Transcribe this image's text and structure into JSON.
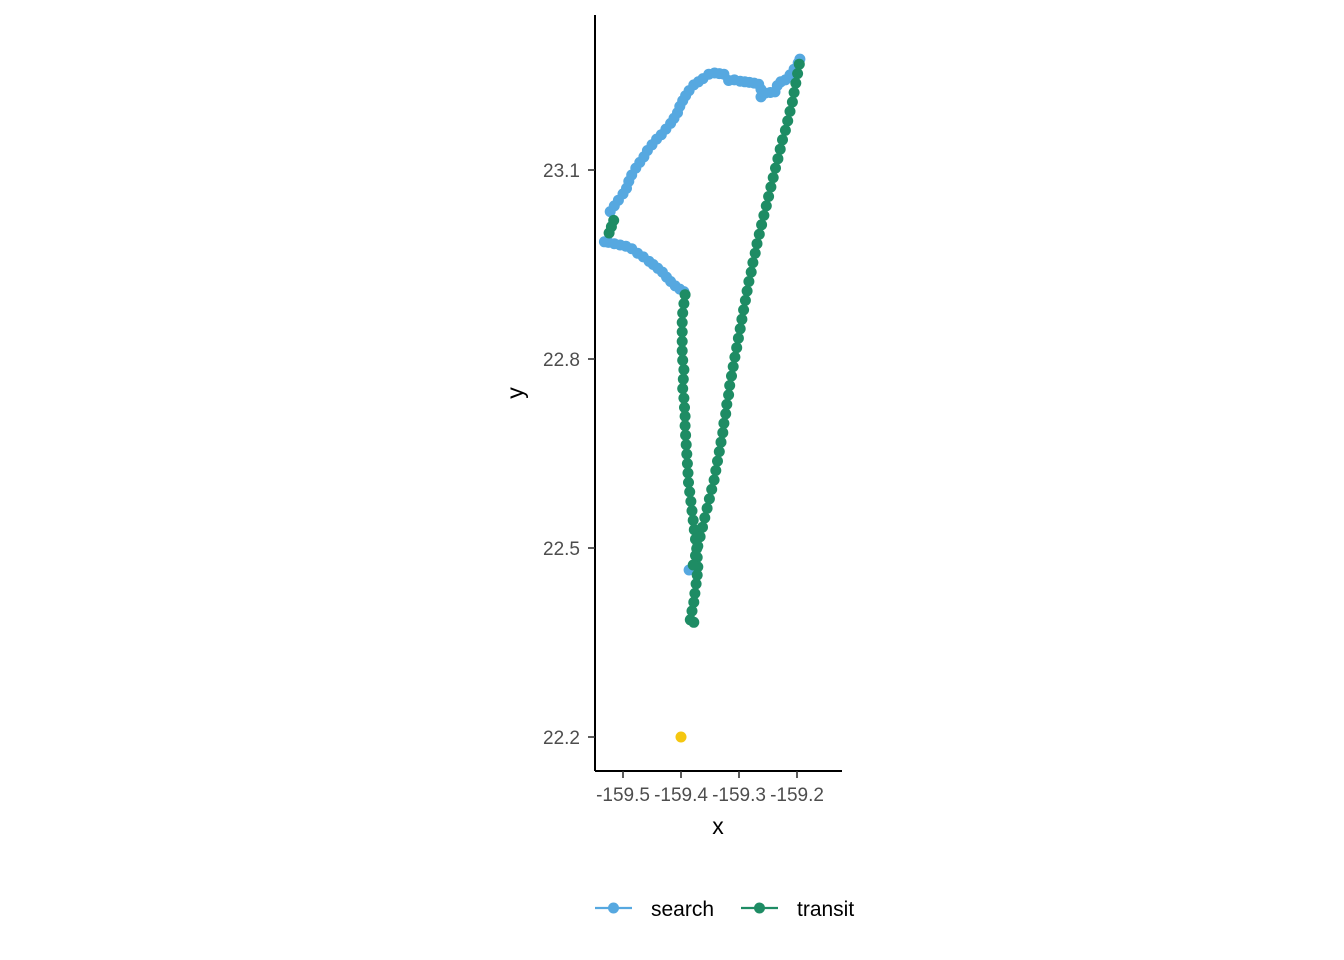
{
  "chart_data": {
    "type": "scatter",
    "title": "",
    "xlabel": "x",
    "ylabel": "y",
    "x_ticks": [
      {
        "value": -159.5,
        "label": "-159.5"
      },
      {
        "value": -159.4,
        "label": "-159.4"
      },
      {
        "value": -159.3,
        "label": "-159.3"
      },
      {
        "value": -159.2,
        "label": "-159.2"
      }
    ],
    "y_ticks": [
      {
        "value": 22.2,
        "label": "22.2"
      },
      {
        "value": 22.5,
        "label": "22.5"
      },
      {
        "value": 22.8,
        "label": "22.8"
      },
      {
        "value": 23.1,
        "label": "23.1"
      }
    ],
    "xlim": [
      -159.55,
      -159.125
    ],
    "ylim": [
      22.145,
      23.345
    ],
    "grid": false,
    "legend_position": "bottom",
    "legend": [
      {
        "name": "search",
        "color": "#56A8E0"
      },
      {
        "name": "transit",
        "color": "#1E8C64"
      }
    ],
    "series": [
      {
        "name": "search",
        "color": "#56A8E0",
        "points": [
          [
            -159.532,
            22.986
          ],
          [
            -159.525,
            22.985
          ],
          [
            -159.515,
            22.983
          ],
          [
            -159.505,
            22.981
          ],
          [
            -159.495,
            22.979
          ],
          [
            -159.485,
            22.975
          ],
          [
            -159.475,
            22.968
          ],
          [
            -159.465,
            22.962
          ],
          [
            -159.455,
            22.955
          ],
          [
            -159.448,
            22.95
          ],
          [
            -159.44,
            22.944
          ],
          [
            -159.432,
            22.938
          ],
          [
            -159.425,
            22.93
          ],
          [
            -159.418,
            22.923
          ],
          [
            -159.41,
            22.916
          ],
          [
            -159.402,
            22.911
          ],
          [
            -159.395,
            22.907
          ],
          [
            -159.522,
            23.034
          ],
          [
            -159.515,
            23.043
          ],
          [
            -159.508,
            23.052
          ],
          [
            -159.5,
            23.062
          ],
          [
            -159.494,
            23.071
          ],
          [
            -159.49,
            23.082
          ],
          [
            -159.485,
            23.092
          ],
          [
            -159.478,
            23.103
          ],
          [
            -159.471,
            23.112
          ],
          [
            -159.464,
            23.121
          ],
          [
            -159.458,
            23.131
          ],
          [
            -159.45,
            23.14
          ],
          [
            -159.442,
            23.149
          ],
          [
            -159.434,
            23.156
          ],
          [
            -159.426,
            23.165
          ],
          [
            -159.418,
            23.174
          ],
          [
            -159.412,
            23.182
          ],
          [
            -159.406,
            23.191
          ],
          [
            -159.402,
            23.201
          ],
          [
            -159.397,
            23.21
          ],
          [
            -159.392,
            23.218
          ],
          [
            -159.386,
            23.226
          ],
          [
            -159.378,
            23.235
          ],
          [
            -159.37,
            23.24
          ],
          [
            -159.362,
            23.245
          ],
          [
            -159.352,
            23.252
          ],
          [
            -159.342,
            23.254
          ],
          [
            -159.334,
            23.253
          ],
          [
            -159.326,
            23.252
          ],
          [
            -159.318,
            23.242
          ],
          [
            -159.308,
            23.243
          ],
          [
            -159.298,
            23.241
          ],
          [
            -159.29,
            23.24
          ],
          [
            -159.282,
            23.239
          ],
          [
            -159.274,
            23.238
          ],
          [
            -159.266,
            23.236
          ],
          [
            -159.262,
            23.228
          ],
          [
            -159.262,
            23.216
          ],
          [
            -159.255,
            23.222
          ],
          [
            -159.246,
            23.223
          ],
          [
            -159.238,
            23.224
          ],
          [
            -159.234,
            23.234
          ],
          [
            -159.228,
            23.24
          ],
          [
            -159.22,
            23.243
          ],
          [
            -159.212,
            23.251
          ],
          [
            -159.205,
            23.26
          ],
          [
            -159.198,
            23.27
          ],
          [
            -159.195,
            23.276
          ],
          [
            -159.386,
            22.465
          ]
        ]
      },
      {
        "name": "transit",
        "color": "#1E8C64",
        "points": [
          [
            -159.524,
            23.0
          ],
          [
            -159.52,
            23.01
          ],
          [
            -159.516,
            23.02
          ],
          [
            -159.393,
            22.902
          ],
          [
            -159.395,
            22.888
          ],
          [
            -159.397,
            22.873
          ],
          [
            -159.398,
            22.858
          ],
          [
            -159.398,
            22.843
          ],
          [
            -159.398,
            22.828
          ],
          [
            -159.398,
            22.813
          ],
          [
            -159.397,
            22.798
          ],
          [
            -159.395,
            22.783
          ],
          [
            -159.396,
            22.768
          ],
          [
            -159.397,
            22.753
          ],
          [
            -159.395,
            22.738
          ],
          [
            -159.394,
            22.723
          ],
          [
            -159.393,
            22.709
          ],
          [
            -159.393,
            22.694
          ],
          [
            -159.392,
            22.679
          ],
          [
            -159.391,
            22.664
          ],
          [
            -159.39,
            22.649
          ],
          [
            -159.389,
            22.634
          ],
          [
            -159.388,
            22.619
          ],
          [
            -159.387,
            22.604
          ],
          [
            -159.385,
            22.589
          ],
          [
            -159.383,
            22.574
          ],
          [
            -159.381,
            22.559
          ],
          [
            -159.379,
            22.544
          ],
          [
            -159.377,
            22.529
          ],
          [
            -159.375,
            22.514
          ],
          [
            -159.373,
            22.499
          ],
          [
            -159.372,
            22.485
          ],
          [
            -159.371,
            22.47
          ],
          [
            -159.372,
            22.457
          ],
          [
            -159.374,
            22.443
          ],
          [
            -159.376,
            22.428
          ],
          [
            -159.378,
            22.414
          ],
          [
            -159.381,
            22.4
          ],
          [
            -159.384,
            22.386
          ],
          [
            -159.378,
            22.382
          ],
          [
            -159.196,
            23.268
          ],
          [
            -159.199,
            23.253
          ],
          [
            -159.202,
            23.238
          ],
          [
            -159.205,
            23.223
          ],
          [
            -159.208,
            23.208
          ],
          [
            -159.212,
            23.193
          ],
          [
            -159.216,
            23.178
          ],
          [
            -159.22,
            23.163
          ],
          [
            -159.225,
            23.148
          ],
          [
            -159.229,
            23.133
          ],
          [
            -159.233,
            23.118
          ],
          [
            -159.237,
            23.103
          ],
          [
            -159.241,
            23.088
          ],
          [
            -159.245,
            23.073
          ],
          [
            -159.249,
            23.058
          ],
          [
            -159.253,
            23.043
          ],
          [
            -159.257,
            23.028
          ],
          [
            -159.261,
            23.013
          ],
          [
            -159.265,
            22.998
          ],
          [
            -159.269,
            22.983
          ],
          [
            -159.272,
            22.968
          ],
          [
            -159.276,
            22.953
          ],
          [
            -159.279,
            22.938
          ],
          [
            -159.283,
            22.923
          ],
          [
            -159.286,
            22.908
          ],
          [
            -159.289,
            22.893
          ],
          [
            -159.292,
            22.878
          ],
          [
            -159.295,
            22.863
          ],
          [
            -159.298,
            22.848
          ],
          [
            -159.301,
            22.833
          ],
          [
            -159.304,
            22.818
          ],
          [
            -159.307,
            22.803
          ],
          [
            -159.31,
            22.788
          ],
          [
            -159.313,
            22.773
          ],
          [
            -159.316,
            22.758
          ],
          [
            -159.318,
            22.743
          ],
          [
            -159.321,
            22.728
          ],
          [
            -159.323,
            22.713
          ],
          [
            -159.326,
            22.698
          ],
          [
            -159.328,
            22.683
          ],
          [
            -159.331,
            22.668
          ],
          [
            -159.334,
            22.653
          ],
          [
            -159.337,
            22.638
          ],
          [
            -159.34,
            22.623
          ],
          [
            -159.343,
            22.608
          ],
          [
            -159.347,
            22.593
          ],
          [
            -159.351,
            22.578
          ],
          [
            -159.355,
            22.563
          ],
          [
            -159.359,
            22.548
          ],
          [
            -159.363,
            22.533
          ],
          [
            -159.367,
            22.518
          ],
          [
            -159.371,
            22.503
          ],
          [
            -159.375,
            22.488
          ],
          [
            -159.379,
            22.473
          ]
        ]
      },
      {
        "name": "",
        "color": "#F5C710",
        "points": [
          [
            -159.4,
            22.2
          ]
        ]
      }
    ]
  }
}
